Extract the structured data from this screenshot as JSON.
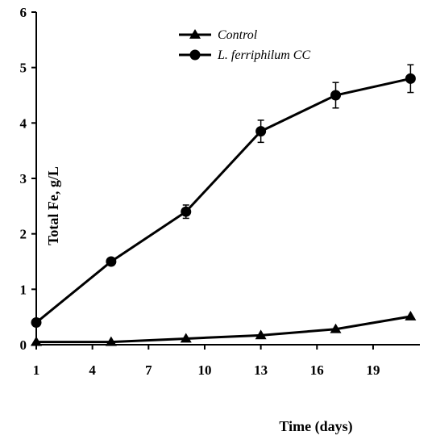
{
  "chart_data": {
    "type": "line",
    "xlabel": "Time (days)",
    "ylabel": "Total Fe, g/L",
    "xlim": [
      1,
      21.5
    ],
    "ylim": [
      0,
      6
    ],
    "xticks": [
      1,
      4,
      7,
      10,
      13,
      16,
      19
    ],
    "yticks": [
      0,
      1,
      2,
      3,
      4,
      5,
      6
    ],
    "grid": false,
    "legend_position": "top-center",
    "series": [
      {
        "name": "Control",
        "marker": "triangle",
        "x": [
          1,
          5,
          9,
          13,
          17,
          21
        ],
        "y": [
          0.05,
          0.05,
          0.11,
          0.17,
          0.28,
          0.51
        ],
        "error": [
          0,
          0,
          0,
          0,
          0,
          0
        ]
      },
      {
        "name": "L. ferriphilum CC",
        "marker": "circle",
        "x": [
          1,
          5,
          9,
          13,
          17,
          21
        ],
        "y": [
          0.4,
          1.5,
          2.4,
          3.85,
          4.5,
          4.8
        ],
        "error": [
          0,
          0.03,
          0.12,
          0.2,
          0.23,
          0.25
        ]
      }
    ]
  }
}
